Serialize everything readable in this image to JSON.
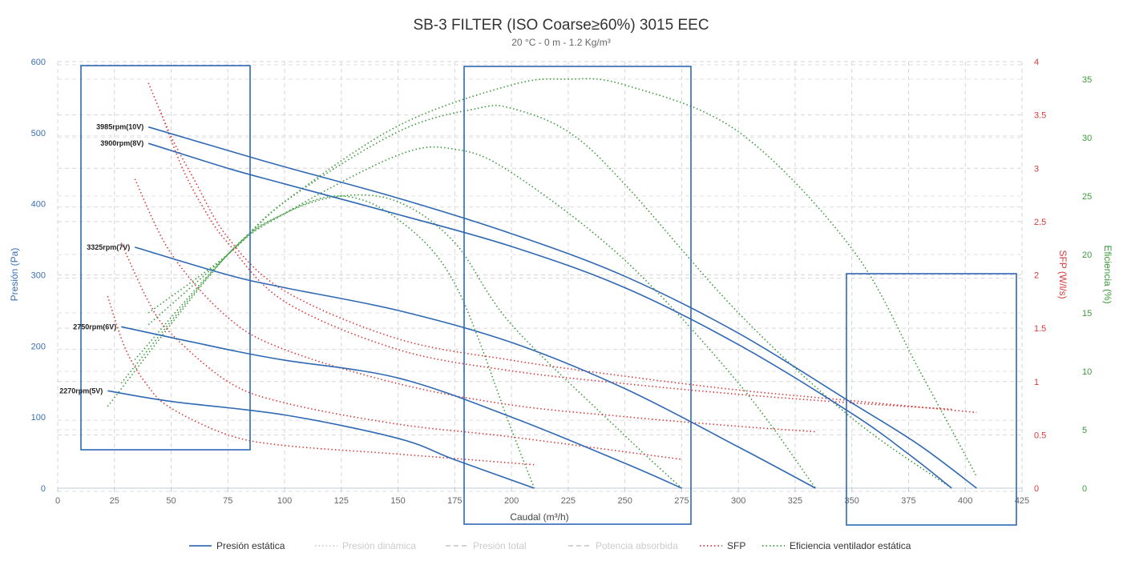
{
  "chart_data": {
    "type": "line",
    "title": "SB-3 FILTER (ISO Coarse≥60%) 3015 EEC",
    "subtitle": "20 °C - 0 m - 1.2 Kg/m³",
    "xlabel": "Caudal (m³/h)",
    "xlim": [
      0,
      425
    ],
    "x_ticks": [
      0,
      25,
      50,
      75,
      100,
      125,
      150,
      175,
      200,
      225,
      250,
      275,
      300,
      325,
      350,
      375,
      400,
      425
    ],
    "y_axes": [
      {
        "key": "pressure",
        "label": "Presión (Pa)",
        "lim": [
          0,
          600
        ],
        "ticks": [
          0,
          100,
          200,
          300,
          400,
          500,
          600
        ],
        "position": "left",
        "color": "#3a6fb5"
      },
      {
        "key": "sfp",
        "label": "SFP (W/l/s)",
        "lim": [
          0,
          4
        ],
        "ticks": [
          "0",
          "0.5",
          "1",
          "1.5",
          "2",
          "2.5",
          "3",
          "3.5",
          "4"
        ],
        "position": "right",
        "color": "#d83a3a"
      },
      {
        "key": "efficiency",
        "label": "Eficiencia (%)",
        "lim": [
          0,
          36.5
        ],
        "ticks": [
          0,
          5,
          10,
          15,
          20,
          25,
          30,
          35
        ],
        "position": "right-outer",
        "color": "#3a9a3a"
      }
    ],
    "grid": true,
    "legend_position": "bottom",
    "legend": [
      {
        "label": "Presión estática",
        "style": "solid",
        "color": "#3a6fb5",
        "active": true
      },
      {
        "label": "Presión dinámica",
        "style": "dotted",
        "color": "#cccccc",
        "active": false
      },
      {
        "label": "Presión total",
        "style": "dashed",
        "color": "#cccccc",
        "active": false
      },
      {
        "label": "Potencia absorbida",
        "style": "dashed",
        "color": "#cccccc",
        "active": false
      },
      {
        "label": "SFP",
        "style": "dotted",
        "color": "#d83a3a",
        "active": true
      },
      {
        "label": "Eficiencia ventilador estática",
        "style": "dotted",
        "color": "#3a9a3a",
        "active": true
      }
    ],
    "pressure_series": [
      {
        "label": "3985rpm(10V)",
        "x": [
          40,
          75,
          100,
          150,
          200,
          250,
          300,
          350,
          380,
          405
        ],
        "y": [
          508,
          475,
          452,
          408,
          358,
          298,
          218,
          120,
          60,
          0
        ]
      },
      {
        "label": "3900rpm(8V)",
        "x": [
          40,
          75,
          100,
          150,
          200,
          250,
          300,
          350,
          375,
          394
        ],
        "y": [
          485,
          450,
          428,
          385,
          340,
          282,
          202,
          105,
          48,
          0
        ]
      },
      {
        "label": "3325rpm(7V)",
        "x": [
          34,
          75,
          100,
          150,
          200,
          250,
          300,
          334
        ],
        "y": [
          339,
          300,
          282,
          250,
          205,
          140,
          58,
          0
        ]
      },
      {
        "label": "2750rpm(6V)",
        "x": [
          28,
          75,
          100,
          150,
          200,
          250,
          275
        ],
        "y": [
          227,
          195,
          180,
          155,
          100,
          35,
          0
        ]
      },
      {
        "label": "2270rpm(5V)",
        "x": [
          22,
          50,
          100,
          150,
          175,
          210
        ],
        "y": [
          137,
          122,
          103,
          70,
          40,
          0
        ]
      }
    ],
    "sfp_series": [
      {
        "x": [
          40,
          50,
          60,
          75,
          100,
          150,
          200,
          250,
          300,
          350,
          405
        ],
        "y": [
          3.8,
          3.3,
          2.9,
          2.35,
          1.85,
          1.4,
          1.2,
          1.05,
          0.92,
          0.82,
          0.71
        ]
      },
      {
        "x": [
          45,
          55,
          65,
          75,
          100,
          150,
          200,
          250,
          300,
          350,
          394
        ],
        "y": [
          3.55,
          3.0,
          2.6,
          2.3,
          1.75,
          1.3,
          1.1,
          0.98,
          0.88,
          0.8,
          0.74
        ]
      },
      {
        "x": [
          34,
          50,
          75,
          100,
          150,
          200,
          250,
          300,
          334
        ],
        "y": [
          2.9,
          2.2,
          1.6,
          1.3,
          0.98,
          0.78,
          0.67,
          0.58,
          0.53
        ]
      },
      {
        "x": [
          28,
          40,
          50,
          75,
          100,
          150,
          200,
          275
        ],
        "y": [
          2.3,
          1.75,
          1.45,
          1.0,
          0.8,
          0.6,
          0.48,
          0.27
        ]
      },
      {
        "x": [
          22,
          30,
          40,
          50,
          75,
          100,
          150,
          210
        ],
        "y": [
          1.8,
          1.3,
          0.95,
          0.75,
          0.5,
          0.4,
          0.32,
          0.22
        ]
      }
    ],
    "efficiency_series": [
      {
        "x": [
          40,
          75,
          100,
          150,
          200,
          225,
          250,
          300,
          350,
          380,
          405
        ],
        "y": [
          15,
          20,
          24.5,
          31,
          34.5,
          35,
          34.5,
          30.5,
          20.5,
          10,
          1
        ]
      },
      {
        "x": [
          40,
          75,
          100,
          150,
          185,
          200,
          225,
          250,
          300,
          350,
          394
        ],
        "y": [
          14,
          20,
          24.5,
          30.5,
          32.5,
          32.5,
          30.5,
          26,
          15,
          6,
          0
        ]
      },
      {
        "x": [
          34,
          75,
          100,
          150,
          175,
          200,
          250,
          300,
          334
        ],
        "y": [
          11,
          20,
          23.5,
          28.5,
          29,
          27,
          19.5,
          9,
          0
        ]
      },
      {
        "x": [
          28,
          75,
          100,
          125,
          150,
          175,
          200,
          250,
          275
        ],
        "y": [
          9,
          20,
          23.5,
          25,
          24.5,
          21,
          14,
          4.5,
          0
        ]
      },
      {
        "x": [
          22,
          75,
          100,
          125,
          150,
          175,
          200,
          210
        ],
        "y": [
          7,
          20,
          23.5,
          25,
          23,
          17.5,
          5,
          0
        ]
      }
    ]
  }
}
